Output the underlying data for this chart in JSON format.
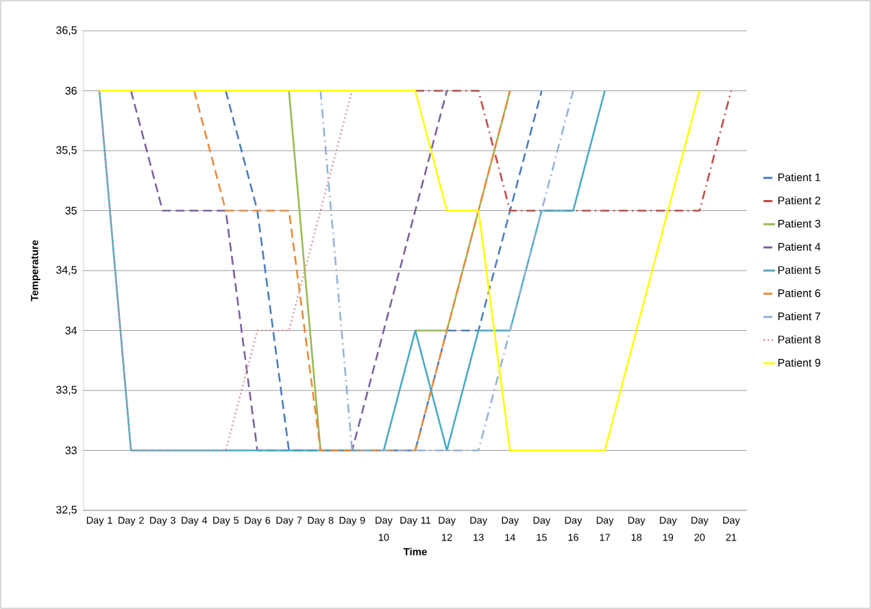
{
  "chart_data": {
    "type": "line",
    "xlabel": "Time",
    "ylabel": "Temperature",
    "categories": [
      "Day 1",
      "Day 2",
      "Day 3",
      "Day 4",
      "Day 5",
      "Day 6",
      "Day 7",
      "Day 8",
      "Day 9",
      "Day 10",
      "Day 11",
      "Day 12",
      "Day 13",
      "Day 14",
      "Day 15",
      "Day 16",
      "Day 17",
      "Day 18",
      "Day 19",
      "Day 20",
      "Day 21"
    ],
    "ylim": [
      32.5,
      36.5
    ],
    "yticks": [
      {
        "value": 32.5,
        "label": "32,5"
      },
      33,
      {
        "value": 33.5,
        "label": "33,5"
      },
      34,
      {
        "value": 34.5,
        "label": "34,5"
      },
      35,
      {
        "value": 35.5,
        "label": "35,5"
      },
      36,
      {
        "value": 36.5,
        "label": "36,5"
      }
    ],
    "grid": "y",
    "legend": "right",
    "marker": "none",
    "series": [
      {
        "name": "Patient 1",
        "color": "#4a7ebb",
        "line_style": "dashed",
        "values": [
          null,
          null,
          null,
          null,
          36,
          35,
          33,
          33,
          33,
          33,
          33,
          34,
          34,
          35,
          36,
          null,
          null,
          null,
          null,
          null,
          null
        ]
      },
      {
        "name": "Patient 2",
        "color": "#be4b48",
        "line_style": "dashdot",
        "values": [
          null,
          null,
          null,
          null,
          null,
          null,
          null,
          null,
          null,
          null,
          36,
          36,
          36,
          35,
          35,
          35,
          35,
          35,
          35,
          35,
          36
        ]
      },
      {
        "name": "Patient 3",
        "color": "#98b954",
        "line_style": "solid",
        "values": [
          null,
          null,
          null,
          null,
          null,
          null,
          36,
          33,
          33,
          null,
          34,
          34,
          35,
          36,
          null,
          null,
          null,
          null,
          null,
          null,
          null
        ]
      },
      {
        "name": "Patient 4",
        "color": "#7d60a0",
        "line_style": "dashed",
        "values": [
          null,
          36,
          35,
          35,
          35,
          33,
          33,
          33,
          33,
          34,
          35,
          36,
          null,
          null,
          null,
          null,
          null,
          null,
          null,
          null,
          null
        ]
      },
      {
        "name": "Patient 5",
        "color": "#46aac5",
        "line_style": "solid",
        "values": [
          36,
          33,
          33,
          33,
          33,
          33,
          33,
          33,
          33,
          33,
          34,
          33,
          34,
          34,
          35,
          35,
          36,
          null,
          null,
          null,
          null
        ]
      },
      {
        "name": "Patient 6",
        "color": "#e88a3c",
        "line_style": "dashed",
        "values": [
          null,
          null,
          null,
          36,
          35,
          35,
          35,
          33,
          33,
          33,
          33,
          34,
          35,
          36,
          null,
          null,
          null,
          null,
          null,
          null,
          null
        ]
      },
      {
        "name": "Patient 7",
        "color": "#94b3d6",
        "line_style": "dashdot",
        "values": [
          null,
          null,
          null,
          null,
          null,
          null,
          null,
          36,
          33,
          33,
          33,
          33,
          33,
          34,
          35,
          36,
          null,
          null,
          null,
          null,
          null
        ]
      },
      {
        "name": "Patient 8",
        "color": "#d99694",
        "line_style": "dotted",
        "values": [
          36,
          33,
          33,
          33,
          33,
          34,
          34,
          35,
          36,
          null,
          null,
          null,
          null,
          null,
          null,
          null,
          null,
          null,
          null,
          null,
          null
        ]
      },
      {
        "name": "Patient 9",
        "color": "#ffff00",
        "line_style": "solid",
        "values": [
          36,
          36,
          36,
          36,
          36,
          36,
          36,
          36,
          36,
          36,
          36,
          35,
          35,
          33,
          33,
          33,
          33,
          34,
          35,
          36,
          null
        ]
      }
    ]
  }
}
